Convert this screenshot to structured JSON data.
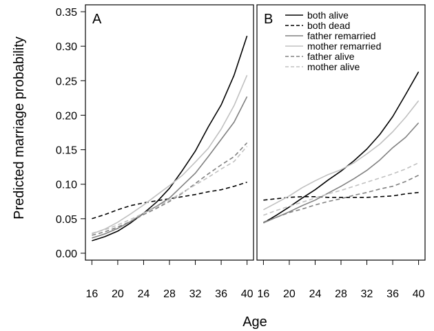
{
  "figure": {
    "xlabel": "Age",
    "ylabel": "Predicted marriage probability"
  },
  "chart_data": [
    {
      "type": "line",
      "panel_label": "A",
      "xlabel": "Age",
      "ylabel": "Predicted marriage probability",
      "xlim": [
        15,
        41
      ],
      "ylim": [
        -0.01,
        0.36
      ],
      "xticks": [
        16,
        20,
        24,
        28,
        32,
        36,
        40
      ],
      "yticks": [
        "0.00",
        "0.05",
        "0.10",
        "0.15",
        "0.20",
        "0.25",
        "0.30",
        "0.35"
      ],
      "grid": false,
      "legend": null,
      "series": [
        {
          "name": "both alive",
          "color": "#000000",
          "dash": "solid",
          "x": [
            16,
            18,
            20,
            22,
            24,
            26,
            28,
            30,
            32,
            34,
            36,
            38,
            40
          ],
          "y": [
            0.018,
            0.024,
            0.032,
            0.044,
            0.058,
            0.074,
            0.094,
            0.12,
            0.148,
            0.183,
            0.215,
            0.258,
            0.315
          ]
        },
        {
          "name": "both dead",
          "color": "#000000",
          "dash": "dashed",
          "x": [
            16,
            18,
            20,
            22,
            24,
            26,
            28,
            30,
            32,
            34,
            36,
            38,
            40
          ],
          "y": [
            0.05,
            0.056,
            0.063,
            0.069,
            0.073,
            0.076,
            0.079,
            0.082,
            0.085,
            0.089,
            0.092,
            0.097,
            0.103
          ]
        },
        {
          "name": "father remarried",
          "color": "#808080",
          "dash": "solid",
          "x": [
            16,
            18,
            20,
            22,
            24,
            26,
            28,
            30,
            32,
            34,
            36,
            38,
            40
          ],
          "y": [
            0.022,
            0.028,
            0.036,
            0.046,
            0.058,
            0.068,
            0.08,
            0.098,
            0.116,
            0.14,
            0.165,
            0.19,
            0.227
          ]
        },
        {
          "name": "mother remarried",
          "color": "#c0c0c0",
          "dash": "solid",
          "x": [
            16,
            18,
            20,
            22,
            24,
            26,
            28,
            30,
            32,
            34,
            36,
            38,
            40
          ],
          "y": [
            0.028,
            0.035,
            0.045,
            0.057,
            0.07,
            0.084,
            0.098,
            0.113,
            0.132,
            0.152,
            0.18,
            0.214,
            0.258
          ]
        },
        {
          "name": "father alive",
          "color": "#808080",
          "dash": "dashed",
          "x": [
            16,
            18,
            20,
            22,
            24,
            26,
            28,
            30,
            32,
            34,
            36,
            38,
            40
          ],
          "y": [
            0.026,
            0.031,
            0.038,
            0.046,
            0.056,
            0.065,
            0.075,
            0.087,
            0.101,
            0.115,
            0.128,
            0.14,
            0.16
          ]
        },
        {
          "name": "mother alive",
          "color": "#c0c0c0",
          "dash": "dashed",
          "x": [
            16,
            18,
            20,
            22,
            24,
            26,
            28,
            30,
            32,
            34,
            36,
            38,
            40
          ],
          "y": [
            0.029,
            0.034,
            0.041,
            0.049,
            0.058,
            0.067,
            0.077,
            0.088,
            0.099,
            0.11,
            0.122,
            0.133,
            0.155
          ]
        }
      ]
    },
    {
      "type": "line",
      "panel_label": "B",
      "xlabel": "Age",
      "xlim": [
        15,
        41
      ],
      "ylim": [
        -0.01,
        0.36
      ],
      "xticks": [
        16,
        20,
        24,
        28,
        32,
        36,
        40
      ],
      "grid": false,
      "legend": "top-left",
      "series": [
        {
          "name": "both alive",
          "color": "#000000",
          "dash": "solid",
          "x": [
            16,
            18,
            20,
            22,
            24,
            26,
            28,
            30,
            32,
            34,
            36,
            38,
            40
          ],
          "y": [
            0.044,
            0.055,
            0.067,
            0.08,
            0.092,
            0.106,
            0.119,
            0.134,
            0.151,
            0.172,
            0.198,
            0.23,
            0.263
          ]
        },
        {
          "name": "both dead",
          "color": "#000000",
          "dash": "dashed",
          "x": [
            16,
            18,
            20,
            22,
            24,
            26,
            28,
            30,
            32,
            34,
            36,
            38,
            40
          ],
          "y": [
            0.077,
            0.079,
            0.081,
            0.082,
            0.082,
            0.081,
            0.081,
            0.081,
            0.081,
            0.082,
            0.083,
            0.086,
            0.088
          ]
        },
        {
          "name": "father remarried",
          "color": "#808080",
          "dash": "solid",
          "x": [
            16,
            18,
            20,
            22,
            24,
            26,
            28,
            30,
            32,
            34,
            36,
            38,
            40
          ],
          "y": [
            0.044,
            0.052,
            0.06,
            0.069,
            0.077,
            0.087,
            0.097,
            0.108,
            0.12,
            0.135,
            0.153,
            0.168,
            0.189
          ]
        },
        {
          "name": "mother remarried",
          "color": "#c0c0c0",
          "dash": "solid",
          "x": [
            16,
            18,
            20,
            22,
            24,
            26,
            28,
            30,
            32,
            34,
            36,
            38,
            40
          ],
          "y": [
            0.063,
            0.073,
            0.083,
            0.095,
            0.105,
            0.114,
            0.121,
            0.131,
            0.144,
            0.158,
            0.176,
            0.197,
            0.221
          ]
        },
        {
          "name": "father alive",
          "color": "#808080",
          "dash": "dashed",
          "x": [
            16,
            18,
            20,
            22,
            24,
            26,
            28,
            30,
            32,
            34,
            36,
            38,
            40
          ],
          "y": [
            0.045,
            0.052,
            0.059,
            0.064,
            0.07,
            0.075,
            0.079,
            0.084,
            0.088,
            0.093,
            0.097,
            0.104,
            0.113
          ]
        },
        {
          "name": "mother alive",
          "color": "#c0c0c0",
          "dash": "dashed",
          "x": [
            16,
            18,
            20,
            22,
            24,
            26,
            28,
            30,
            32,
            34,
            36,
            38,
            40
          ],
          "y": [
            0.055,
            0.062,
            0.068,
            0.074,
            0.08,
            0.086,
            0.091,
            0.097,
            0.103,
            0.109,
            0.115,
            0.122,
            0.131
          ]
        }
      ]
    }
  ]
}
